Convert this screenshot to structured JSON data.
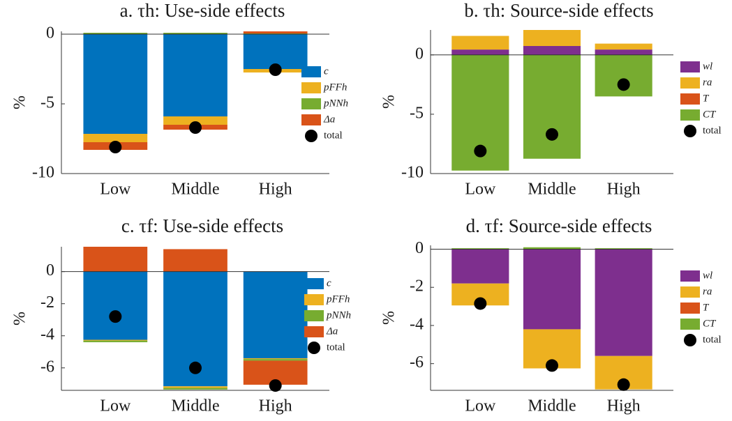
{
  "chart_data": [
    {
      "type": "bar",
      "title": "a. τh: Use-side effects",
      "y_label": "%",
      "categories": [
        "Low",
        "Middle",
        "High"
      ],
      "ylim": [
        -10,
        0.2
      ],
      "yticks": [
        0,
        -5,
        -10
      ],
      "legend": "right",
      "series": [
        {
          "name": "c",
          "color": "#0072bd",
          "values": [
            -7.15,
            -5.9,
            -2.5
          ]
        },
        {
          "name": "pFFh",
          "color": "#edb120",
          "values": [
            -0.6,
            -0.6,
            -0.25
          ]
        },
        {
          "name": "pNNh",
          "color": "#77ac30",
          "values": [
            0.1,
            0.1,
            0.05
          ]
        },
        {
          "name": "Δa",
          "color": "#d95319",
          "values": [
            -0.55,
            -0.35,
            0.2
          ]
        }
      ],
      "totals": {
        "name": "total",
        "color": "#000000",
        "values": [
          -8.1,
          -6.7,
          -2.55
        ]
      }
    },
    {
      "type": "bar",
      "title": "b. τh: Source-side effects",
      "y_label": "%",
      "categories": [
        "Low",
        "Middle",
        "High"
      ],
      "ylim": [
        -10,
        2.1
      ],
      "yticks": [
        0,
        -5,
        -10
      ],
      "legend": "right",
      "series": [
        {
          "name": "wl",
          "color": "#7e2f8e",
          "values": [
            0.45,
            0.75,
            0.45
          ]
        },
        {
          "name": "ra",
          "color": "#edb120",
          "values": [
            1.15,
            1.35,
            0.5
          ]
        },
        {
          "name": "T",
          "color": "#d95319",
          "values": [
            0,
            0,
            0
          ]
        },
        {
          "name": "CT",
          "color": "#77ac30",
          "values": [
            -9.75,
            -8.75,
            -3.5
          ]
        }
      ],
      "totals": {
        "name": "total",
        "color": "#000000",
        "values": [
          -8.1,
          -6.7,
          -2.5
        ]
      }
    },
    {
      "type": "bar",
      "title": "c. τf: Use-side effects",
      "y_label": "%",
      "categories": [
        "Low",
        "Middle",
        "High"
      ],
      "ylim": [
        -7.4,
        1.55
      ],
      "yticks": [
        0,
        -2,
        -4,
        -6
      ],
      "legend": "right",
      "series": [
        {
          "name": "c",
          "color": "#0072bd",
          "values": [
            -4.25,
            -7.15,
            -5.4
          ]
        },
        {
          "name": "pFFh",
          "color": "#edb120",
          "values": [
            -0.05,
            -0.1,
            -0.05
          ]
        },
        {
          "name": "pNNh",
          "color": "#77ac30",
          "values": [
            -0.1,
            -0.1,
            -0.1
          ]
        },
        {
          "name": "Δa",
          "color": "#d95319",
          "values": [
            1.55,
            1.4,
            -1.5
          ]
        }
      ],
      "totals": {
        "name": "total",
        "color": "#000000",
        "values": [
          -2.8,
          -6.0,
          -7.1
        ]
      }
    },
    {
      "type": "bar",
      "title": "d. τf: Source-side effects",
      "y_label": "%",
      "categories": [
        "Low",
        "Middle",
        "High"
      ],
      "ylim": [
        -7.4,
        0.2
      ],
      "yticks": [
        0,
        -2,
        -4,
        -6
      ],
      "legend": "right",
      "series": [
        {
          "name": "wl",
          "color": "#7e2f8e",
          "values": [
            -1.8,
            -4.2,
            -5.6
          ]
        },
        {
          "name": "ra",
          "color": "#edb120",
          "values": [
            -1.15,
            -2.05,
            -1.75
          ]
        },
        {
          "name": "T",
          "color": "#d95319",
          "values": [
            0,
            0,
            0
          ]
        },
        {
          "name": "CT",
          "color": "#77ac30",
          "values": [
            0.05,
            0.1,
            0.05
          ]
        }
      ],
      "totals": {
        "name": "total",
        "color": "#000000",
        "values": [
          -2.85,
          -6.1,
          -7.1
        ]
      }
    }
  ]
}
